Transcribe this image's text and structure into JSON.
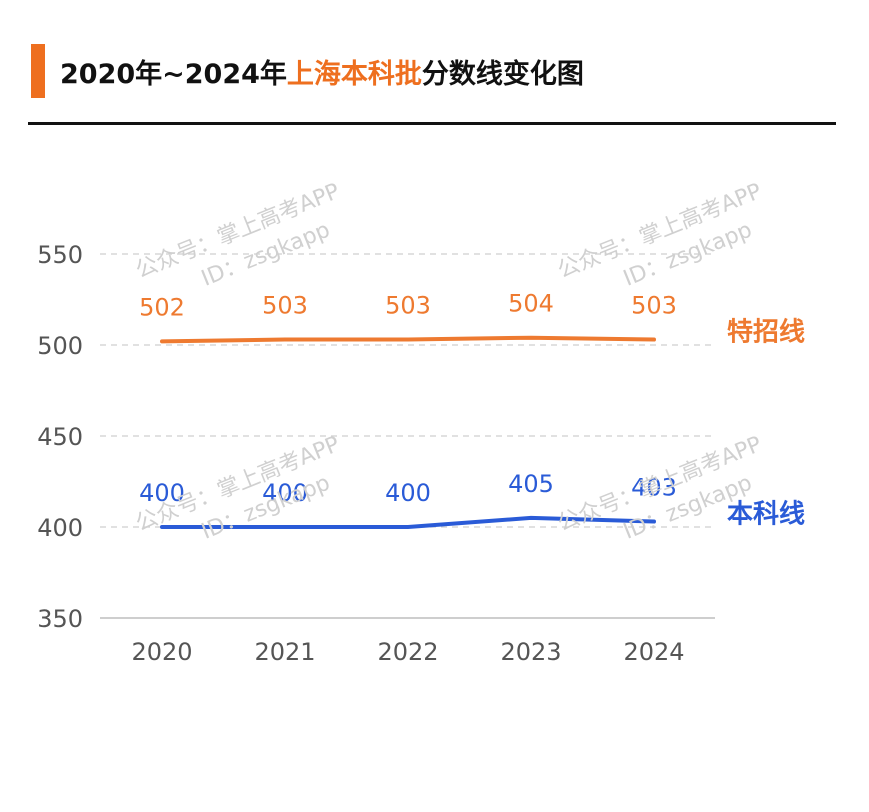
{
  "title": {
    "prefix": "2020年~2024年",
    "highlight": "上海本科批",
    "suffix": "分数线变化图"
  },
  "watermark": {
    "line1": "公众号：掌上高考APP",
    "line2": "ID：zsgkapp"
  },
  "colors": {
    "accent": "#ee6f1f",
    "special": "#ee7a30",
    "regular": "#2a5bd7",
    "grid": "#cfcfcf",
    "tick": "#555555"
  },
  "chart_data": {
    "type": "line",
    "x": [
      "2020",
      "2021",
      "2022",
      "2023",
      "2024"
    ],
    "ylim": [
      350,
      550
    ],
    "yticks": [
      350,
      400,
      450,
      500,
      550
    ],
    "grid": "horizontal dashed",
    "series": [
      {
        "name": "特招线",
        "values": [
          502,
          503,
          503,
          504,
          503
        ],
        "color": "#ee7a30"
      },
      {
        "name": "本科线",
        "values": [
          400,
          400,
          400,
          405,
          403
        ],
        "color": "#2a5bd7"
      }
    ]
  }
}
